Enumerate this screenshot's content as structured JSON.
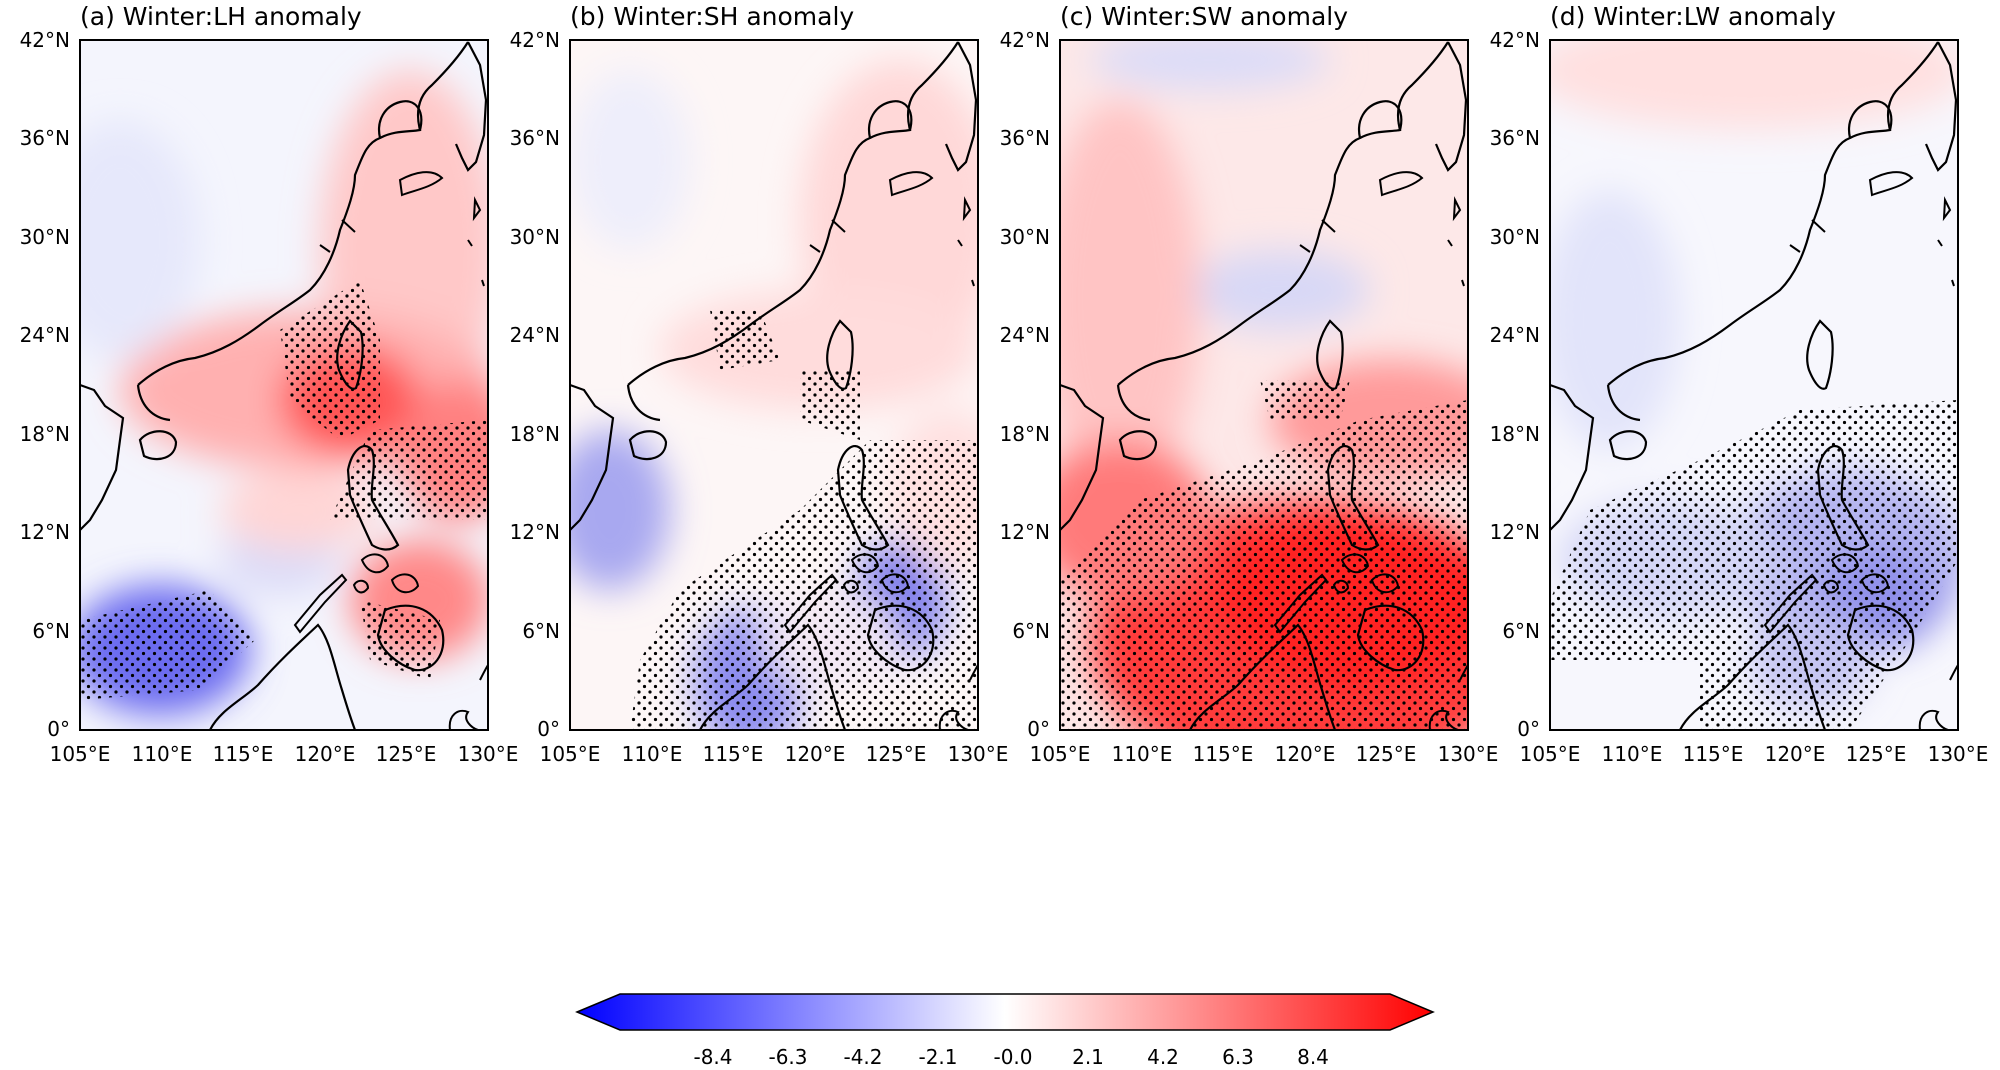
{
  "panels": [
    {
      "title": "(a) Winter:LH anomaly",
      "variable": "LH",
      "season": "Winter"
    },
    {
      "title": "(b) Winter:SH anomaly",
      "variable": "SH",
      "season": "Winter"
    },
    {
      "title": "(c) Winter:SW anomaly",
      "variable": "SW",
      "season": "Winter"
    },
    {
      "title": "(d) Winter:LW anomaly",
      "variable": "LW",
      "season": "Winter"
    }
  ],
  "axes": {
    "lat_ticks": [
      "42°N",
      "36°N",
      "30°N",
      "24°N",
      "18°N",
      "12°N",
      "6°N",
      "0°"
    ],
    "lon_ticks": [
      "105°E",
      "110°E",
      "115°E",
      "120°E",
      "125°E",
      "130°E"
    ],
    "lat_range": [
      0,
      42
    ],
    "lon_range": [
      105,
      130
    ]
  },
  "colorbar": {
    "ticks": [
      "-8.4",
      "-6.3",
      "-4.2",
      "-2.1",
      "-0.0",
      "2.1",
      "4.2",
      "6.3",
      "8.4"
    ],
    "min_color": "#0000ff",
    "mid_color": "#ffffff",
    "max_color": "#ff0000",
    "extend": "both"
  },
  "colors": {
    "coastline": "#000000",
    "stipple": "#000000"
  }
}
